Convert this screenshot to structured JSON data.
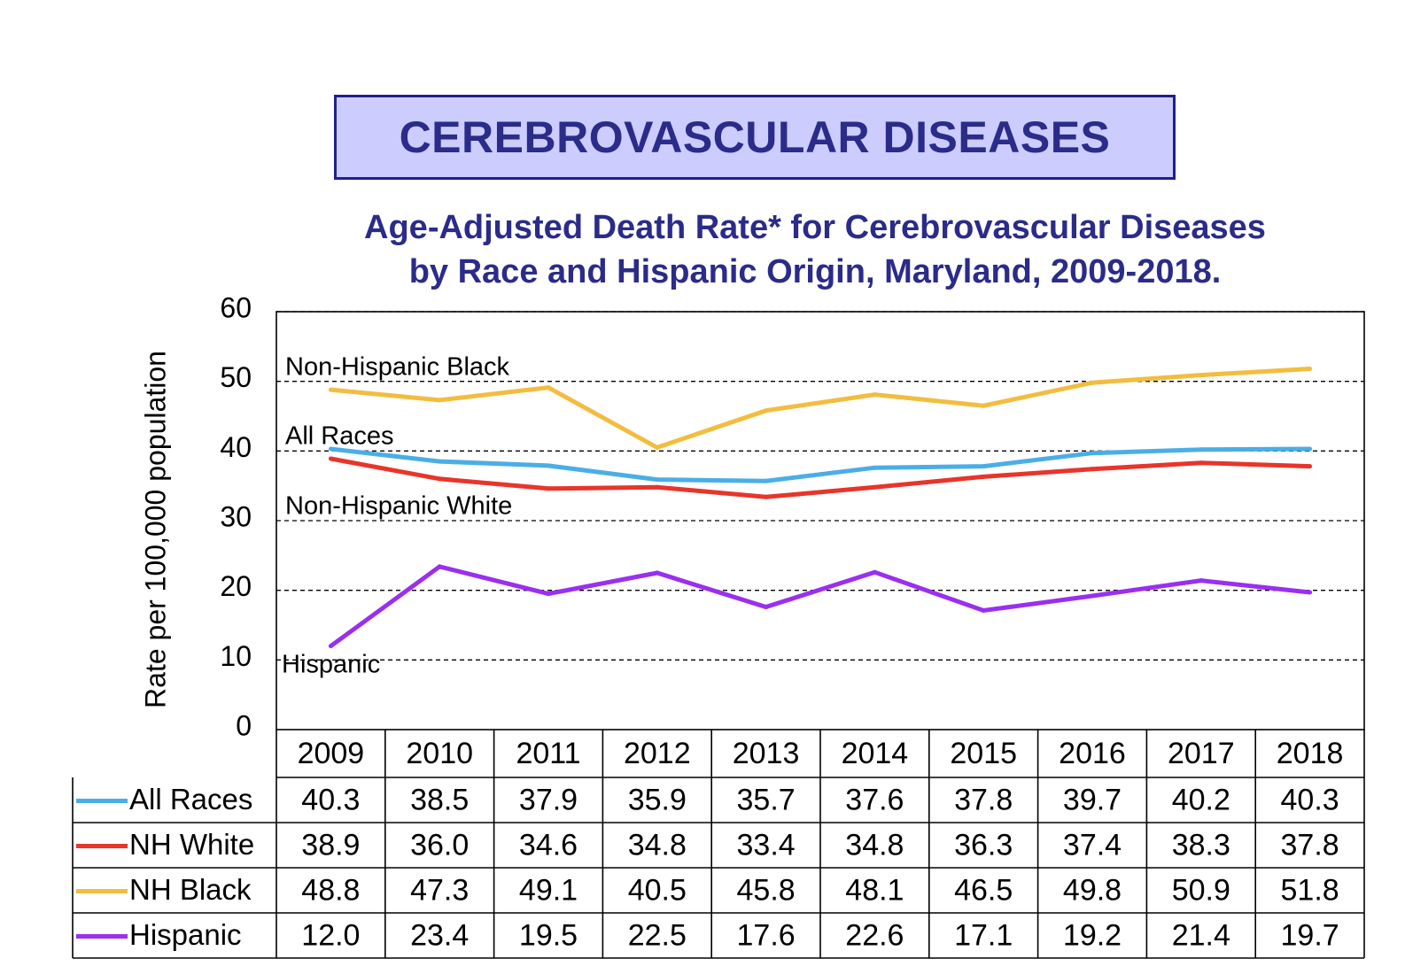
{
  "header": {
    "banner": "CEREBROVASCULAR DISEASES",
    "title_line1": "Age-Adjusted Death Rate* for Cerebrovascular Diseases",
    "title_line2": "by Race and Hispanic Origin, Maryland, 2009-2018."
  },
  "chart_data": {
    "type": "line",
    "title": "Age-Adjusted Death Rate* for Cerebrovascular Diseases by Race and Hispanic Origin, Maryland, 2009-2018.",
    "ylabel": "Rate per 100,000 population",
    "xlabel": "",
    "ylim": [
      0,
      60
    ],
    "yticks": [
      0,
      10,
      20,
      30,
      40,
      50,
      60
    ],
    "grid": "horizontal dashed",
    "legend": "data table below chart",
    "categories": [
      "2009",
      "2010",
      "2011",
      "2012",
      "2013",
      "2014",
      "2015",
      "2016",
      "2017",
      "2018"
    ],
    "series": [
      {
        "name": "All Races",
        "table_label": "All Races",
        "color": "#4aaee6",
        "values": [
          40.3,
          38.5,
          37.9,
          35.9,
          35.7,
          37.6,
          37.8,
          39.7,
          40.2,
          40.3
        ]
      },
      {
        "name": "Non-Hispanic White",
        "table_label": "NH White",
        "color": "#e8352a",
        "values": [
          38.9,
          36.0,
          34.6,
          34.8,
          33.4,
          34.8,
          36.3,
          37.4,
          38.3,
          37.8
        ]
      },
      {
        "name": "Non-Hispanic Black",
        "table_label": "NH Black",
        "color": "#f2bd3f",
        "values": [
          48.8,
          47.3,
          49.1,
          40.5,
          45.8,
          48.1,
          46.5,
          49.8,
          50.9,
          51.8
        ]
      },
      {
        "name": "Hispanic",
        "table_label": "Hispanic",
        "color": "#9a2ff0",
        "values": [
          12.0,
          23.4,
          19.5,
          22.5,
          17.6,
          22.6,
          17.1,
          19.2,
          21.4,
          19.7
        ]
      }
    ],
    "annotations": [
      "Non-Hispanic Black",
      "All Races",
      "Non-Hispanic White",
      "Hispanic"
    ],
    "table_values_text": [
      [
        "40.3",
        "38.5",
        "37.9",
        "35.9",
        "35.7",
        "37.6",
        "37.8",
        "39.7",
        "40.2",
        "40.3"
      ],
      [
        "38.9",
        "36.0",
        "34.6",
        "34.8",
        "33.4",
        "34.8",
        "36.3",
        "37.4",
        "38.3",
        "37.8"
      ],
      [
        "48.8",
        "47.3",
        "49.1",
        "40.5",
        "45.8",
        "48.1",
        "46.5",
        "49.8",
        "50.9",
        "51.8"
      ],
      [
        "12.0",
        "23.4",
        "19.5",
        "22.5",
        "17.6",
        "22.6",
        "17.1",
        "19.2",
        "21.4",
        "19.7"
      ]
    ]
  }
}
